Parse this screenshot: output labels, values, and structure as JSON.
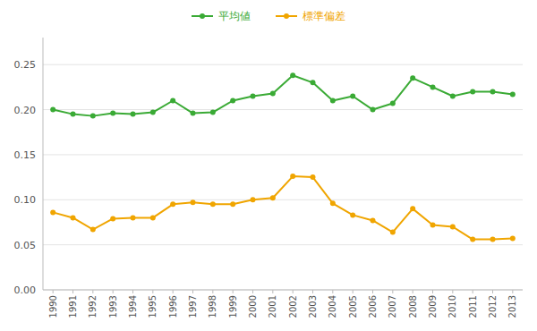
{
  "chart_data": {
    "type": "line",
    "x": [
      1990,
      1991,
      1992,
      1993,
      1994,
      1995,
      1996,
      1997,
      1998,
      1999,
      2000,
      2001,
      2002,
      2003,
      2004,
      2005,
      2006,
      2007,
      2008,
      2009,
      2010,
      2011,
      2012,
      2013
    ],
    "series": [
      {
        "name": "平均値",
        "color": "#3aaa35",
        "marker": "circle",
        "values": [
          0.2,
          0.195,
          0.193,
          0.196,
          0.195,
          0.197,
          0.21,
          0.196,
          0.197,
          0.21,
          0.215,
          0.218,
          0.238,
          0.23,
          0.21,
          0.215,
          0.2,
          0.207,
          0.235,
          0.225,
          0.215,
          0.22,
          0.22,
          0.217
        ]
      },
      {
        "name": "標準偏差",
        "color": "#f0a500",
        "marker": "circle",
        "values": [
          0.086,
          0.08,
          0.067,
          0.079,
          0.08,
          0.08,
          0.095,
          0.097,
          0.095,
          0.095,
          0.1,
          0.102,
          0.126,
          0.125,
          0.096,
          0.083,
          0.077,
          0.064,
          0.09,
          0.072,
          0.07,
          0.056,
          0.056,
          0.057
        ]
      }
    ],
    "xlim": [
      1989.5,
      2013.5
    ],
    "xticks": [
      1990,
      1991,
      1992,
      1993,
      1994,
      1995,
      1996,
      1997,
      1998,
      1999,
      2000,
      2001,
      2002,
      2003,
      2004,
      2005,
      2006,
      2007,
      2008,
      2009,
      2010,
      2011,
      2012,
      2013
    ],
    "ylim": [
      0.0,
      0.28
    ],
    "yticks": [
      {
        "value": 0.0,
        "label": "0.00"
      },
      0.05,
      {
        "value": 0.1,
        "label": "0.10"
      },
      0.15,
      {
        "value": 0.2,
        "label": "0.20"
      },
      0.25
    ],
    "grid": true,
    "legend": "top"
  }
}
